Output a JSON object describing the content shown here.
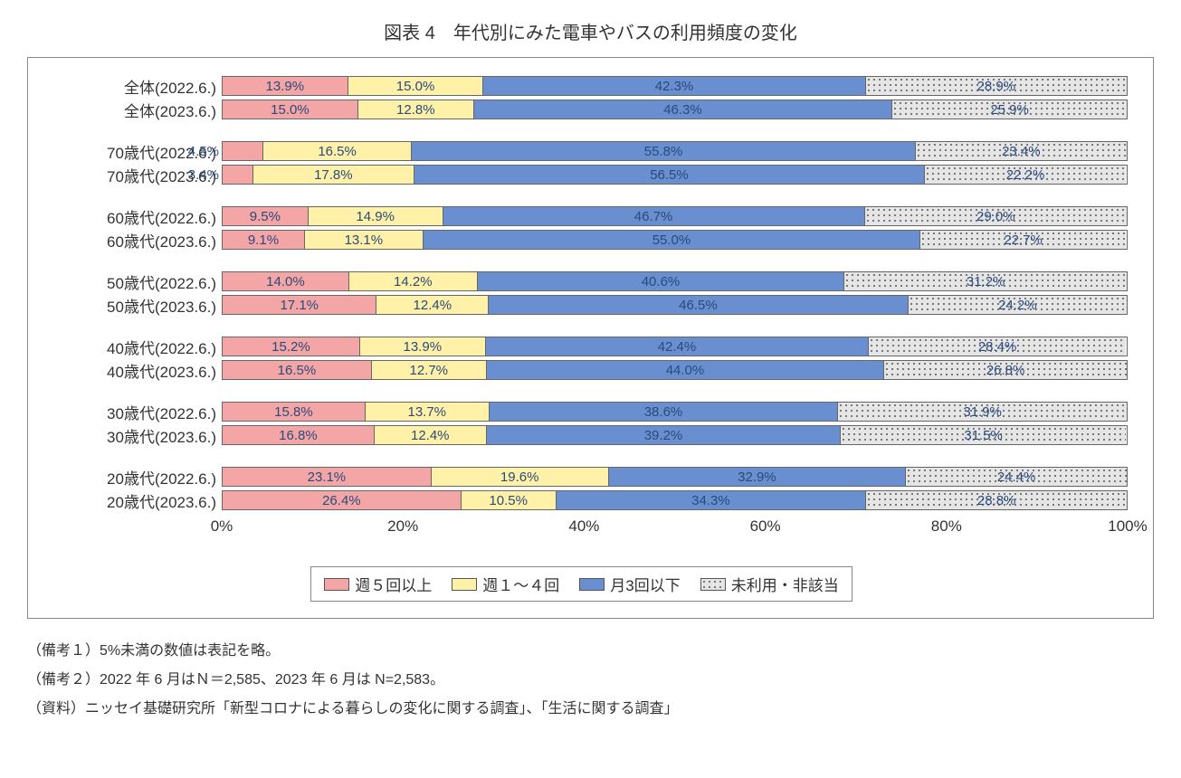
{
  "title": "図表 4　年代別にみた電車やバスの利用頻度の変化",
  "chart": {
    "type": "stacked_bar_horizontal_100pct",
    "series": [
      {
        "name": "週５回以上",
        "color": "#f4a6a6",
        "pattern": "solid"
      },
      {
        "name": "週１～４回",
        "color": "#fff2a8",
        "pattern": "solid"
      },
      {
        "name": "月3回以下",
        "color": "#6a8fd0",
        "pattern": "solid"
      },
      {
        "name": "未利用・非該当",
        "color": "#e5e5e5",
        "pattern": "dotted"
      }
    ],
    "value_label_color": "#2a4a7a",
    "label_fontsize": 15,
    "row_label_fontsize": 17,
    "axis_fontsize": 17,
    "frame_border_color": "#888888",
    "bar_border_color": "#666666",
    "background_color": "#ffffff",
    "hide_threshold_pct": 5.0,
    "x_axis": {
      "min": 0,
      "max": 100,
      "step": 20,
      "tick_labels": [
        "0%",
        "20%",
        "40%",
        "60%",
        "80%",
        "100%"
      ]
    },
    "groups": [
      {
        "rows": [
          {
            "label": "全体(2022.6.)",
            "values": [
              13.9,
              15.0,
              42.3,
              28.9
            ]
          },
          {
            "label": "全体(2023.6.)",
            "values": [
              15.0,
              12.8,
              46.3,
              25.9
            ]
          }
        ]
      },
      {
        "rows": [
          {
            "label": "70歳代(2022.6.)",
            "values": [
              4.5,
              16.5,
              55.8,
              23.4
            ],
            "pull_out_first": true
          },
          {
            "label": "70歳代(2023.6.)",
            "values": [
              3.4,
              17.8,
              56.5,
              22.2
            ],
            "pull_out_first": true
          }
        ]
      },
      {
        "rows": [
          {
            "label": "60歳代(2022.6.)",
            "values": [
              9.5,
              14.9,
              46.7,
              29.0
            ]
          },
          {
            "label": "60歳代(2023.6.)",
            "values": [
              9.1,
              13.1,
              55.0,
              22.7
            ]
          }
        ]
      },
      {
        "rows": [
          {
            "label": "50歳代(2022.6.)",
            "values": [
              14.0,
              14.2,
              40.6,
              31.2
            ]
          },
          {
            "label": "50歳代(2023.6.)",
            "values": [
              17.1,
              12.4,
              46.5,
              24.2
            ]
          }
        ]
      },
      {
        "rows": [
          {
            "label": "40歳代(2022.6.)",
            "values": [
              15.2,
              13.9,
              42.4,
              28.4
            ]
          },
          {
            "label": "40歳代(2023.6.)",
            "values": [
              16.5,
              12.7,
              44.0,
              26.8
            ]
          }
        ]
      },
      {
        "rows": [
          {
            "label": "30歳代(2022.6.)",
            "values": [
              15.8,
              13.7,
              38.6,
              31.9
            ]
          },
          {
            "label": "30歳代(2023.6.)",
            "values": [
              16.8,
              12.4,
              39.2,
              31.5
            ]
          }
        ]
      },
      {
        "rows": [
          {
            "label": "20歳代(2022.6.)",
            "values": [
              23.1,
              19.6,
              32.9,
              24.4
            ]
          },
          {
            "label": "20歳代(2023.6.)",
            "values": [
              26.4,
              10.5,
              34.3,
              28.8
            ]
          }
        ]
      }
    ]
  },
  "notes": [
    "（備考１）5%未満の数値は表記を略。",
    "（備考２）2022 年 6 月はＮ＝2,585、2023 年 6 月は N=2,583。",
    "（資料）ニッセイ基礎研究所「新型コロナによる暮らしの変化に関する調査」、「生活に関する調査」"
  ]
}
